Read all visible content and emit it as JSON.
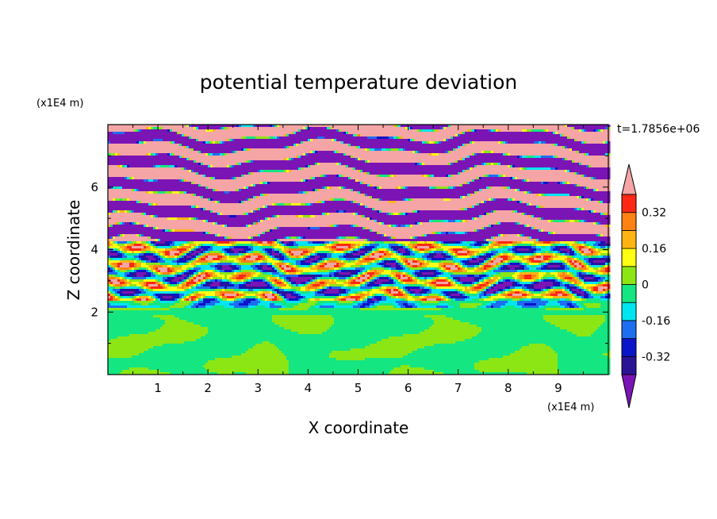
{
  "chart_data": {
    "type": "heatmap",
    "title": "potential temperature deviation",
    "xlabel": "X coordinate",
    "ylabel": "Z coordinate",
    "x_unit": "(x1E4 m)",
    "y_unit": "(x1E4 m)",
    "time_label": "t=1.7856e+06",
    "xlim": [
      0,
      10
    ],
    "ylim": [
      0,
      8
    ],
    "x_ticks": [
      "1",
      "2",
      "3",
      "4",
      "5",
      "6",
      "7",
      "8",
      "9"
    ],
    "y_ticks": [
      "2",
      "4",
      "6"
    ],
    "colorbar": {
      "levels": [
        -0.48,
        -0.4,
        -0.32,
        -0.24,
        -0.16,
        -0.08,
        0,
        0.08,
        0.16,
        0.24,
        0.32,
        0.4,
        0.48
      ],
      "colors": [
        "#7B14B5",
        "#2A1496",
        "#0A14C8",
        "#1E6EF0",
        "#00E6F0",
        "#14E682",
        "#8CE614",
        "#FFFF14",
        "#FFB414",
        "#FF8214",
        "#FF2814",
        "#F5A5A5"
      ],
      "tick_labels": [
        "0.32",
        "0.16",
        "0",
        "-0.16",
        "-0.32"
      ],
      "tick_values": [
        0.32,
        0.16,
        0,
        -0.16,
        -0.32
      ],
      "extend": "both"
    },
    "field_layers": [
      {
        "z_range": [
          0,
          2.1
        ],
        "pattern": "green-mix",
        "classes": [
          -0.04,
          0.04
        ]
      },
      {
        "z_range": [
          2.1,
          4.3
        ],
        "pattern": "mixed-turbulent",
        "classes": [
          -0.48,
          0.48
        ]
      },
      {
        "z_range": [
          4.3,
          8.0
        ],
        "pattern": "stratified-bands",
        "classes": [
          -0.44,
          0.44
        ]
      }
    ]
  }
}
